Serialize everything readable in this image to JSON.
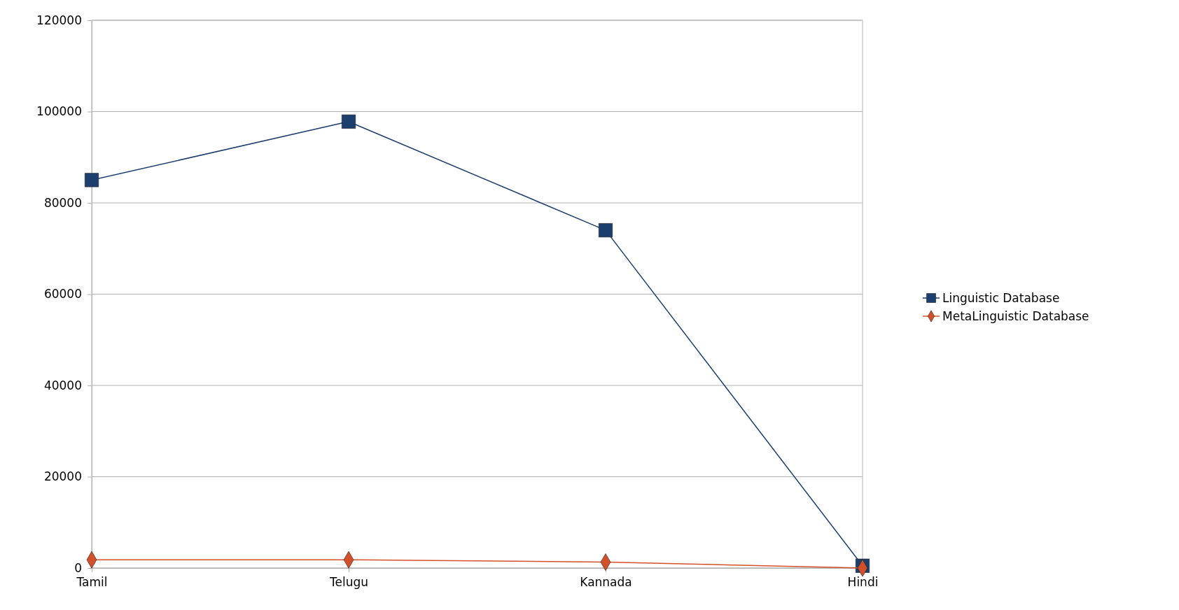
{
  "chart_data": {
    "type": "line",
    "categories": [
      "Tamil",
      "Telugu",
      "Kannada",
      "Hindi"
    ],
    "series": [
      {
        "name": "Linguistic Database",
        "color": "#1c3f6e",
        "marker": "square",
        "values": [
          85000,
          97800,
          74000,
          500
        ]
      },
      {
        "name": "MetaLinguistic Database",
        "color": "#d4502a",
        "marker": "diamond",
        "values": [
          1800,
          1800,
          1300,
          0
        ]
      }
    ],
    "ylim": [
      0,
      120000
    ],
    "yticks": [
      0,
      20000,
      40000,
      60000,
      80000,
      100000,
      120000
    ],
    "grid": "y",
    "legend": "right"
  }
}
